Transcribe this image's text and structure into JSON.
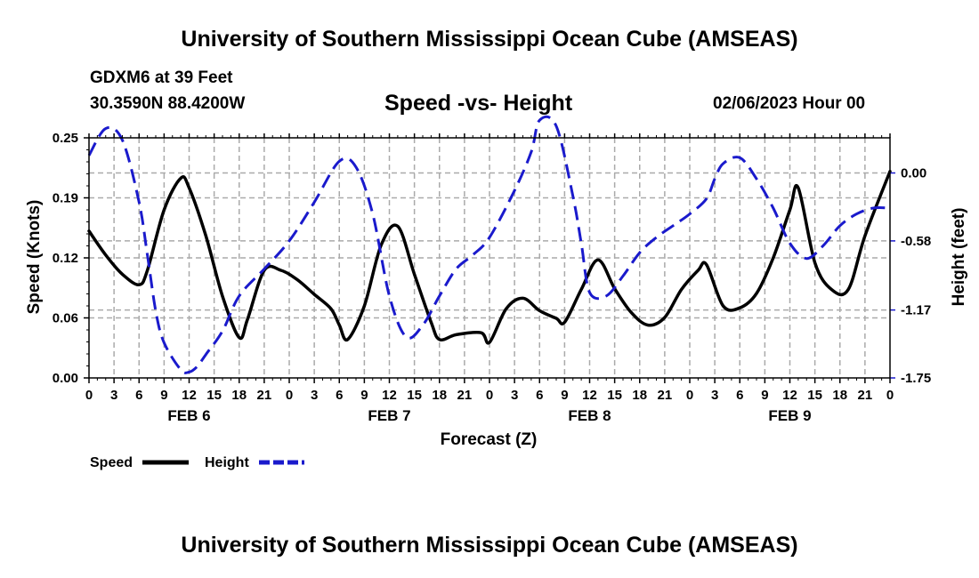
{
  "header": {
    "title": "University of Southern Mississippi Ocean Cube (AMSEAS)",
    "station": "GDXM6 at 39 Feet",
    "coordinates": "30.3590N  88.4200W",
    "chart_title": "Speed -vs- Height",
    "datetime": "02/06/2023 Hour 00"
  },
  "footer": {
    "title": "University of Southern Mississippi Ocean Cube (AMSEAS)"
  },
  "legend": {
    "speed_label": "Speed",
    "height_label": "Height"
  },
  "colors": {
    "speed": "#000000",
    "height": "#1a1acc",
    "grid": "#aaaaaa"
  },
  "chart_data": {
    "type": "line",
    "title": "Speed -vs- Height",
    "xlabel": "Forecast (Z)",
    "ylabel_left": "Speed (Knots)",
    "ylabel_right": "Height (feet)",
    "xlim": [
      0,
      96
    ],
    "ylim_left": [
      0,
      0.25
    ],
    "ylim_right": [
      -1.75,
      0.3
    ],
    "y_ticks_left": [
      "0.00",
      "0.06",
      "0.12",
      "0.19",
      "0.25"
    ],
    "y_tick_values_left": [
      0,
      0.0625,
      0.125,
      0.1875,
      0.25
    ],
    "y_ticks_right": [
      "0.00",
      "-0.58",
      "-1.17",
      "-1.75"
    ],
    "y_tick_values_right": [
      0,
      -0.58,
      -1.17,
      -1.75
    ],
    "x_tick_labels": [
      "0",
      "3",
      "6",
      "9",
      "12",
      "15",
      "18",
      "21",
      "0",
      "3",
      "6",
      "9",
      "12",
      "15",
      "18",
      "21",
      "0",
      "3",
      "6",
      "9",
      "12",
      "15",
      "18",
      "21",
      "0",
      "3",
      "6",
      "9",
      "12",
      "15",
      "18",
      "21",
      "0"
    ],
    "day_labels": [
      {
        "label": "FEB 6",
        "hour": 12
      },
      {
        "label": "FEB 7",
        "hour": 36
      },
      {
        "label": "FEB 8",
        "hour": 60
      },
      {
        "label": "FEB 9",
        "hour": 84
      }
    ],
    "grid": true,
    "series": [
      {
        "name": "Speed",
        "axis": "left",
        "style": "solid",
        "x": [
          0,
          2,
          4,
          6,
          7,
          9,
          11,
          12,
          14,
          16,
          18,
          19,
          21,
          23,
          25,
          27,
          29,
          30,
          31,
          33,
          35,
          37,
          39,
          41,
          42,
          44,
          47,
          48,
          50,
          52,
          54,
          56,
          57,
          59,
          61,
          63,
          65,
          67,
          69,
          71,
          73,
          74,
          76,
          78,
          80,
          82,
          84,
          85,
          87,
          89,
          91,
          93,
          96
        ],
        "values": [
          0.153,
          0.128,
          0.108,
          0.097,
          0.112,
          0.175,
          0.208,
          0.198,
          0.148,
          0.085,
          0.042,
          0.061,
          0.112,
          0.112,
          0.102,
          0.087,
          0.072,
          0.055,
          0.04,
          0.075,
          0.138,
          0.158,
          0.108,
          0.058,
          0.04,
          0.045,
          0.047,
          0.037,
          0.072,
          0.083,
          0.07,
          0.062,
          0.058,
          0.092,
          0.123,
          0.093,
          0.068,
          0.055,
          0.063,
          0.092,
          0.112,
          0.118,
          0.075,
          0.073,
          0.088,
          0.125,
          0.175,
          0.198,
          0.12,
          0.092,
          0.092,
          0.148,
          0.215
        ]
      },
      {
        "name": "Height",
        "axis": "right",
        "style": "dashed",
        "x": [
          0,
          2,
          4,
          6,
          7,
          8,
          9,
          11,
          12,
          13,
          14,
          16,
          18,
          21,
          24,
          27,
          30,
          32,
          34,
          36,
          38,
          40,
          42,
          44,
          46,
          48,
          51,
          53,
          54,
          56,
          58,
          59,
          60,
          62,
          64,
          66,
          68,
          70,
          72,
          74,
          75,
          76,
          78,
          80,
          82,
          84,
          86,
          88,
          90,
          92,
          94,
          96
        ],
        "values": [
          0.15,
          0.38,
          0.28,
          -0.25,
          -0.7,
          -1.18,
          -1.45,
          -1.68,
          -1.7,
          -1.65,
          -1.55,
          -1.35,
          -1.05,
          -0.82,
          -0.58,
          -0.25,
          0.1,
          0.05,
          -0.35,
          -1.05,
          -1.4,
          -1.3,
          -1.05,
          -0.82,
          -0.7,
          -0.55,
          -0.15,
          0.18,
          0.45,
          0.4,
          -0.2,
          -0.6,
          -1.02,
          -1.05,
          -0.88,
          -0.68,
          -0.55,
          -0.45,
          -0.35,
          -0.22,
          -0.05,
          0.08,
          0.13,
          -0.05,
          -0.3,
          -0.6,
          -0.73,
          -0.62,
          -0.45,
          -0.35,
          -0.3,
          -0.3
        ]
      }
    ]
  }
}
